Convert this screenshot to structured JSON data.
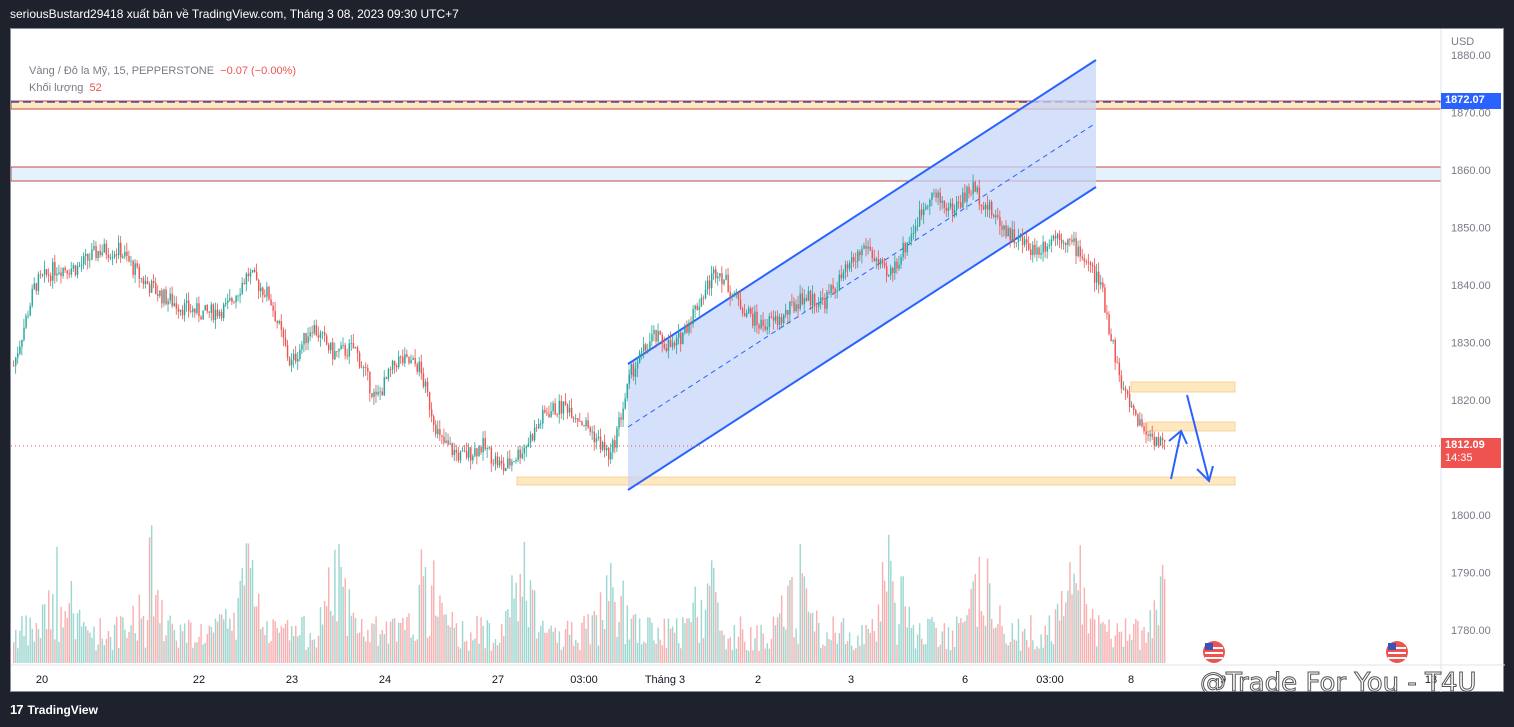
{
  "header": {
    "publish_line": "seriousBustard29418 xuất bản về TradingView.com, Tháng 3 08, 2023 09:30 UTC+7"
  },
  "legend": {
    "symbol": "Vàng / Đô la Mỹ, 15, PEPPERSTONE",
    "change": "−0.07 (−0.00%)",
    "volume_label": "Khối lượng",
    "volume_value": "52"
  },
  "price_axis": {
    "currency": "USD",
    "ticks": [
      "1880.00",
      "1870.00",
      "1860.00",
      "1850.00",
      "1840.00",
      "1830.00",
      "1820.00",
      "1810.00",
      "1800.00",
      "1790.00",
      "1780.00"
    ]
  },
  "price_tags": {
    "resistance": "1872.07",
    "last_price": "1812.09",
    "countdown": "14:35"
  },
  "time_axis": {
    "labels": [
      "20",
      "22",
      "23",
      "24",
      "27",
      "03:00",
      "Tháng 3",
      "2",
      "3",
      "6",
      "03:00",
      "8",
      "9",
      "13"
    ]
  },
  "footer": {
    "brand": "TradingView"
  },
  "watermark": "@Trade For You - T4U",
  "colors": {
    "bull": "#26a69a",
    "bear": "#ef5350",
    "channel": "#2962ff",
    "channel_fill": "#c7d5f8",
    "zone_fill": "#fde8c0",
    "resistance_tag": "#2962ff",
    "last_price_tag": "#ef5350"
  },
  "chart_data": {
    "type": "candlestick",
    "series_name": "Vàng / Đô la Mỹ, 15, PEPPERSTONE",
    "price_range": [
      1774,
      1884
    ],
    "price_path": [
      [
        0,
        1826
      ],
      [
        1,
        1840
      ],
      [
        2,
        1843
      ],
      [
        3,
        1843
      ],
      [
        4,
        1846
      ],
      [
        5,
        1846
      ],
      [
        6,
        1841
      ],
      [
        7,
        1838
      ],
      [
        8,
        1836
      ],
      [
        9,
        1835
      ],
      [
        10,
        1836
      ],
      [
        11,
        1842
      ],
      [
        12,
        1838
      ],
      [
        13,
        1826
      ],
      [
        14,
        1833
      ],
      [
        15,
        1828
      ],
      [
        16,
        1829
      ],
      [
        17,
        1820
      ],
      [
        18,
        1827
      ],
      [
        19,
        1826
      ],
      [
        20,
        1813
      ],
      [
        21,
        1810
      ],
      [
        22,
        1812
      ],
      [
        23,
        1808
      ],
      [
        24,
        1812
      ],
      [
        25,
        1818
      ],
      [
        26,
        1819
      ],
      [
        27,
        1815
      ],
      [
        28,
        1810
      ],
      [
        29,
        1825
      ],
      [
        30,
        1831
      ],
      [
        31,
        1829
      ],
      [
        32,
        1836
      ],
      [
        33,
        1843
      ],
      [
        34,
        1837
      ],
      [
        35,
        1833
      ],
      [
        36,
        1834
      ],
      [
        37,
        1838
      ],
      [
        38,
        1837
      ],
      [
        39,
        1842
      ],
      [
        40,
        1847
      ],
      [
        41,
        1841
      ],
      [
        42,
        1848
      ],
      [
        43,
        1856
      ],
      [
        44,
        1853
      ],
      [
        45,
        1857
      ],
      [
        46,
        1852
      ],
      [
        47,
        1848
      ],
      [
        48,
        1846
      ],
      [
        49,
        1849
      ],
      [
        50,
        1846
      ],
      [
        51,
        1840
      ],
      [
        52,
        1822
      ],
      [
        53,
        1815
      ],
      [
        54,
        1812
      ]
    ],
    "volume_range": [
      0,
      90
    ],
    "channel": {
      "lower": [
        [
          1804.5,
          "27 / 03:00"
        ],
        [
          1857,
          "7"
        ]
      ],
      "upper": [
        [
          1826,
          "27 / 03:00"
        ],
        [
          1879.5,
          "7"
        ]
      ]
    },
    "horizontal_levels": {
      "resistance_dashed": 1872.07,
      "resistance_zone": [
        1870.8,
        1872.5
      ],
      "upper_zone": [
        1857.9,
        1860.8
      ],
      "support_zone": [
        1804.6,
        1806.1
      ],
      "target_zone_1": [
        1821.4,
        1823.2
      ],
      "target_zone_2": [
        1814.9,
        1816.5
      ],
      "last_price": 1812.09
    }
  }
}
